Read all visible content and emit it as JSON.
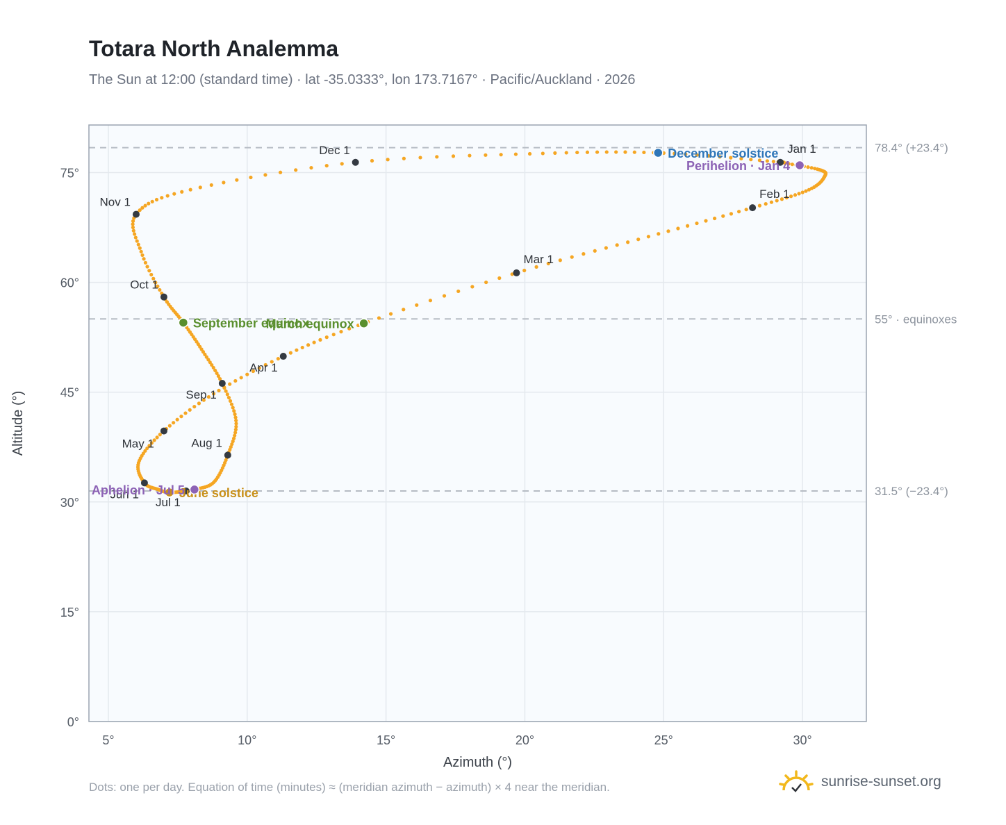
{
  "title": "Totara North Analemma",
  "subtitle": "The Sun at 12:00 (standard time) · lat -35.0333°, lon 173.7167° · Pacific/Auckland · 2026",
  "footnote": "Dots: one per day. Equation of time (minutes) ≈ (meridian azimuth − azimuth) × 4 near the meridian.",
  "brand": {
    "name": "sunrise-sunset.org",
    "icon": "sun-icon",
    "color": "#f2b81c"
  },
  "colors": {
    "path": "#f5a623",
    "month_marker": "#343a42",
    "equinox": "#5a8f2e",
    "december_solstice": "#2f76b8",
    "june_solstice": "#c8901a",
    "perihelion_aphelion": "#8c62b5",
    "plot_bg": "#f8fbfe",
    "grid": "#e4e9ee",
    "frame": "#9aa4b0",
    "ref_line": "#b6bcc4"
  },
  "chart_data": {
    "type": "scatter",
    "xlabel": "Azimuth (°)",
    "ylabel": "Altitude (°)",
    "xlim": [
      4.3,
      32.3
    ],
    "ylim": [
      0,
      81.5
    ],
    "xticks": [
      5,
      10,
      15,
      20,
      25,
      30
    ],
    "yticks": [
      0,
      15,
      30,
      45,
      60,
      75
    ],
    "tick_suffix": "°",
    "grid": true,
    "reference_lines": [
      {
        "y": 78.4,
        "label": "78.4° (+23.4°)"
      },
      {
        "y": 55,
        "label": "55° · equinoxes"
      },
      {
        "y": 31.5,
        "label": "31.5° (−23.4°)"
      }
    ],
    "series": [
      {
        "points": [
          {
            "date": "Jan 1",
            "x": 29.2,
            "y": 76.4
          },
          {
            "date": "Jan 10",
            "x": 30.6,
            "y": 75.4
          },
          {
            "date": "Jan 17",
            "x": 30.8,
            "y": 74.5
          },
          {
            "date": "Jan 24",
            "x": 30.2,
            "y": 72.6
          },
          {
            "date": "Feb 1",
            "x": 28.2,
            "y": 70.2
          },
          {
            "date": "Feb 15",
            "x": 24.5,
            "y": 66.3
          },
          {
            "date": "Mar 1",
            "x": 19.7,
            "y": 61.3
          },
          {
            "date": "Mar 20",
            "x": 14.2,
            "y": 54.4
          },
          {
            "date": "Apr 1",
            "x": 11.3,
            "y": 49.9
          },
          {
            "date": "Apr 15",
            "x": 8.8,
            "y": 44.8
          },
          {
            "date": "May 1",
            "x": 7.0,
            "y": 39.7
          },
          {
            "date": "May 15",
            "x": 6.1,
            "y": 35.5
          },
          {
            "date": "Jun 1",
            "x": 6.3,
            "y": 32.6
          },
          {
            "date": "Jun 10",
            "x": 6.8,
            "y": 31.7
          },
          {
            "date": "Jun 21",
            "x": 7.2,
            "y": 31.3
          },
          {
            "date": "Jul 1",
            "x": 7.8,
            "y": 31.5
          },
          {
            "date": "Jul 5",
            "x": 8.1,
            "y": 31.7
          },
          {
            "date": "Jul 15",
            "x": 8.8,
            "y": 32.7
          },
          {
            "date": "Aug 1",
            "x": 9.3,
            "y": 36.4
          },
          {
            "date": "Aug 15",
            "x": 9.6,
            "y": 41.0
          },
          {
            "date": "Sep 1",
            "x": 9.1,
            "y": 46.2
          },
          {
            "date": "Sep 12",
            "x": 8.4,
            "y": 50.6
          },
          {
            "date": "Sep 23",
            "x": 7.7,
            "y": 54.5
          },
          {
            "date": "Oct 1",
            "x": 7.0,
            "y": 58.0
          },
          {
            "date": "Oct 15",
            "x": 6.2,
            "y": 64.0
          },
          {
            "date": "Nov 1",
            "x": 6.0,
            "y": 69.3
          },
          {
            "date": "Nov 15",
            "x": 8.0,
            "y": 72.7
          },
          {
            "date": "Dec 1",
            "x": 13.9,
            "y": 76.4
          },
          {
            "date": "Dec 15",
            "x": 20.5,
            "y": 77.6
          },
          {
            "date": "Dec 21",
            "x": 24.8,
            "y": 77.7
          },
          {
            "date": "Dec 31",
            "x": 29.0,
            "y": 76.5
          }
        ]
      }
    ],
    "month_markers": [
      {
        "label": "Jan 1",
        "x": 29.2,
        "y": 76.4,
        "anchor": "NE"
      },
      {
        "label": "Feb 1",
        "x": 28.2,
        "y": 70.2,
        "anchor": "NE"
      },
      {
        "label": "Mar 1",
        "x": 19.7,
        "y": 61.3,
        "anchor": "NE"
      },
      {
        "label": "Apr 1",
        "x": 11.3,
        "y": 49.9,
        "anchor": "SW"
      },
      {
        "label": "May 1",
        "x": 7.0,
        "y": 39.7,
        "anchor": "W"
      },
      {
        "label": "Jun 1",
        "x": 6.3,
        "y": 32.6,
        "anchor": "SW"
      },
      {
        "label": "Jul 1",
        "x": 7.8,
        "y": 31.5,
        "anchor": "SW"
      },
      {
        "label": "Aug 1",
        "x": 9.3,
        "y": 36.4,
        "anchor": "NW"
      },
      {
        "label": "Sep 1",
        "x": 9.1,
        "y": 46.2,
        "anchor": "SW"
      },
      {
        "label": "Oct 1",
        "x": 7.0,
        "y": 58.0,
        "anchor": "NW"
      },
      {
        "label": "Nov 1",
        "x": 6.0,
        "y": 69.3,
        "anchor": "NW"
      },
      {
        "label": "Dec 1",
        "x": 13.9,
        "y": 76.4,
        "anchor": "NW"
      }
    ],
    "events": [
      {
        "label": "March equinox",
        "x": 14.2,
        "y": 54.4,
        "color": "#5a8f2e",
        "side": "left"
      },
      {
        "label": "September equinox",
        "x": 7.7,
        "y": 54.5,
        "color": "#5a8f2e",
        "side": "right"
      },
      {
        "label": "December solstice",
        "x": 24.8,
        "y": 77.7,
        "color": "#2f76b8",
        "side": "right"
      },
      {
        "label": "June solstice",
        "x": 7.2,
        "y": 31.3,
        "color": "#c8901a",
        "side": "right"
      },
      {
        "label": "Perihelion · Jan 4",
        "x": 29.9,
        "y": 76.0,
        "color": "#8c62b5",
        "side": "left"
      },
      {
        "label": "Aphelion · Jul 5",
        "x": 8.1,
        "y": 31.7,
        "color": "#8c62b5",
        "side": "left"
      }
    ]
  }
}
